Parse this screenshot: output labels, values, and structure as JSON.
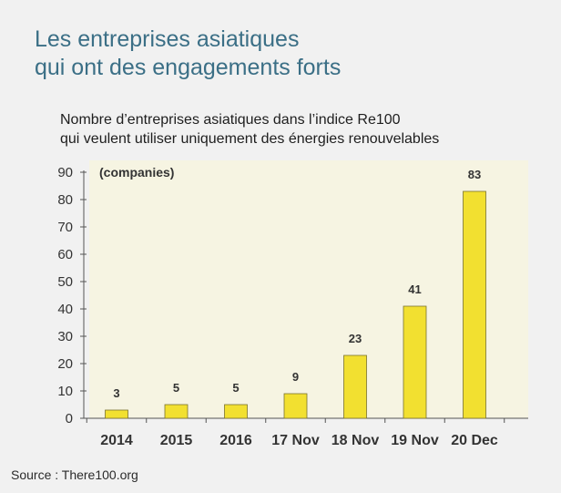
{
  "title_lines": [
    "Les entreprises asiatiques",
    "qui ont des engagements forts"
  ],
  "subtitle_lines": [
    "Nombre d’entreprises asiatiques dans l’indice Re100",
    "qui veulent utiliser uniquement des énergies renouvelables"
  ],
  "source": "Source : There100.org",
  "colors": {
    "bar": "#f2e030",
    "bar_stroke": "#7a7230",
    "title": "#3b6f86",
    "plot_bg": "#f6f4e2",
    "page_bg": "#f1f1f1"
  },
  "chart_data": {
    "type": "bar",
    "title": "",
    "ylabel": "(companies)",
    "xlabel": "",
    "categories": [
      "2014",
      "2015",
      "2016",
      "17 Nov",
      "18 Nov",
      "19 Nov",
      "20 Dec"
    ],
    "values": [
      3,
      5,
      5,
      9,
      23,
      41,
      83
    ],
    "data_labels": [
      "3",
      "5",
      "5",
      "9",
      "23",
      "41",
      "83"
    ],
    "ylim": [
      0,
      90
    ],
    "yticks": [
      0,
      10,
      20,
      30,
      40,
      50,
      60,
      70,
      80,
      90
    ],
    "grid": false,
    "legend": "none"
  }
}
